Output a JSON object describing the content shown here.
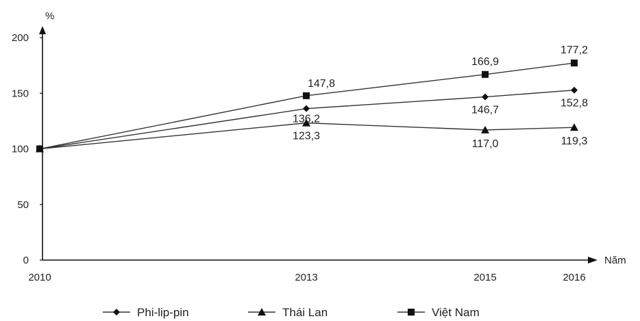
{
  "chart_data": {
    "type": "line",
    "title": "",
    "ylabel": "%",
    "xlabel": "Năm",
    "x": [
      "2010",
      "2013",
      "2015",
      "2016"
    ],
    "y_ticks": [
      "0",
      "50",
      "100",
      "150",
      "200"
    ],
    "ylim": [
      0,
      200
    ],
    "grid": false,
    "legend_position": "bottom",
    "series": [
      {
        "name": "Phi-lip-pin",
        "marker": "diamond",
        "values": [
          100,
          136.2,
          146.7,
          152.8
        ],
        "labels": [
          "",
          "136,2",
          "146,7",
          "152,8"
        ]
      },
      {
        "name": "Thái Lan",
        "marker": "triangle",
        "values": [
          100,
          123.3,
          117.0,
          119.3
        ],
        "labels": [
          "",
          "123,3",
          "117,0",
          "119,3"
        ]
      },
      {
        "name": "Việt Nam",
        "marker": "square",
        "values": [
          100,
          147.8,
          166.9,
          177.2
        ],
        "labels": [
          "",
          "147,8",
          "166,9",
          "177,2"
        ]
      }
    ],
    "colors": {
      "line": "#333333",
      "marker": "#111111",
      "axis": "#111111"
    }
  }
}
